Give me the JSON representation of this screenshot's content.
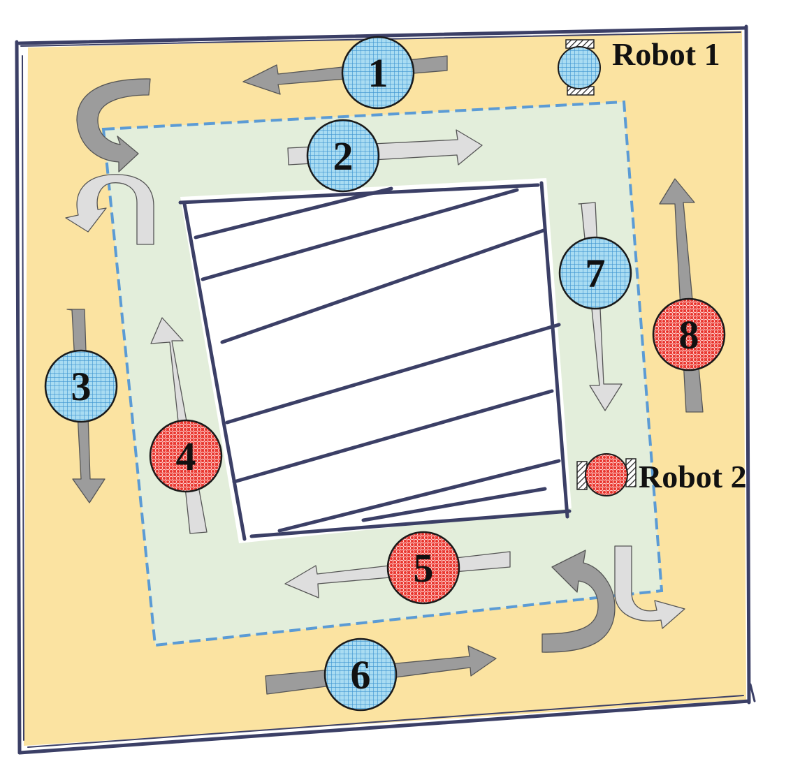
{
  "colors": {
    "outer_lane": "#fbe3a1",
    "inner_lane": "#e3eedb",
    "center": "#ffffff",
    "frame_ink": "#3b3f66",
    "dashed_boundary": "#5b9bd5",
    "blue_robot": "#a9dcf2",
    "red_robot": "#e8322b",
    "dark_arrow": "#9c9c9c",
    "light_arrow": "#dedede"
  },
  "legend": [
    {
      "label": "Robot 1",
      "color": "blue"
    },
    {
      "label": "Robot 2",
      "color": "red"
    }
  ],
  "positions": [
    {
      "label": "1",
      "color": "blue"
    },
    {
      "label": "2",
      "color": "blue"
    },
    {
      "label": "3",
      "color": "blue"
    },
    {
      "label": "4",
      "color": "red"
    },
    {
      "label": "5",
      "color": "red"
    },
    {
      "label": "6",
      "color": "blue"
    },
    {
      "label": "7",
      "color": "blue"
    },
    {
      "label": "8",
      "color": "red"
    }
  ],
  "icons": [
    "robot-1-icon",
    "robot-2-icon",
    "u-turn-arrow-icon",
    "straight-arrow-icon",
    "hatched-obstacle-icon"
  ]
}
